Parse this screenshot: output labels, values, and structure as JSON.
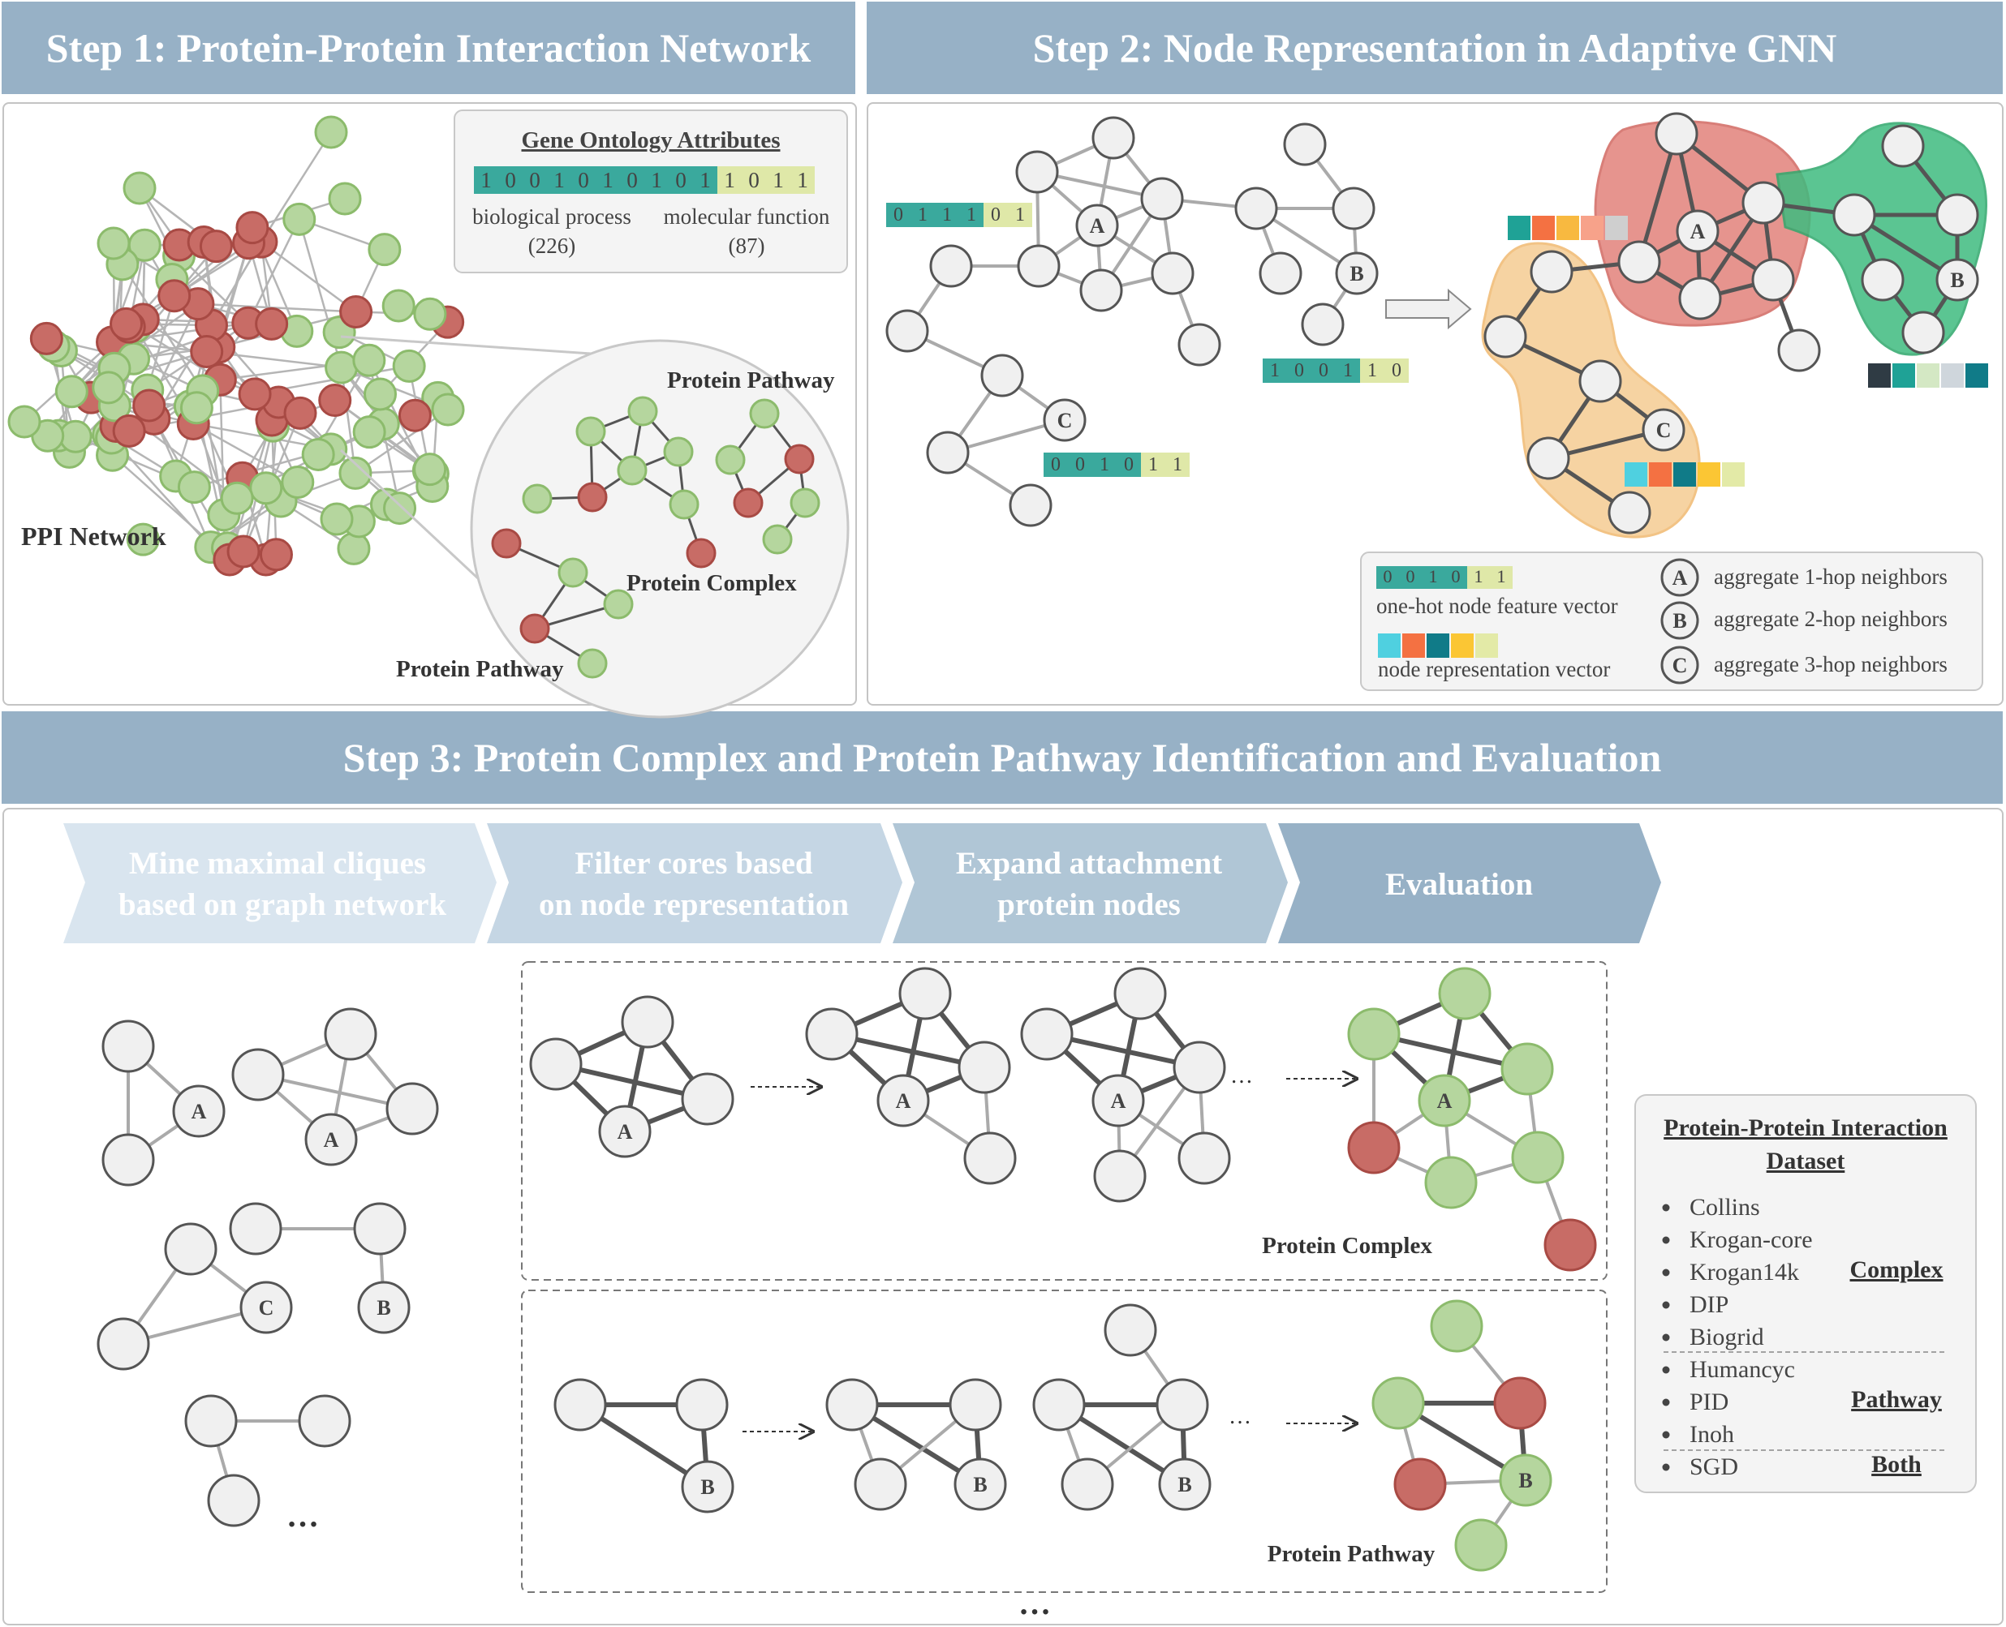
{
  "step1": {
    "title": "Step 1: Protein-Protein Interaction Network",
    "go_box": {
      "title": "Gene Ontology Attributes",
      "bits_bp": [
        "1",
        "0",
        "0",
        "1",
        "0",
        "1",
        "0",
        "1",
        "0",
        "1"
      ],
      "bits_mf": [
        "1",
        "0",
        "1",
        "1"
      ],
      "bp_label": "biological process",
      "bp_count": "(226)",
      "mf_label": "molecular function",
      "mf_count": "(87)"
    },
    "ppi_label": "PPI Network",
    "zoom_labels": {
      "pathway_top": "Protein Pathway",
      "complex": "Protein Complex",
      "pathway_bottom": "Protein Pathway"
    }
  },
  "step2": {
    "title": "Step 2: Node Representation in Adaptive GNN",
    "node_labels": {
      "a": "A",
      "b": "B",
      "c": "C"
    },
    "vec1": [
      "0",
      "1",
      "1",
      "1",
      "0",
      "1"
    ],
    "vec2": [
      "1",
      "0",
      "0",
      "1",
      "1",
      "0"
    ],
    "vec3": [
      "0",
      "0",
      "1",
      "0",
      "1",
      "1"
    ],
    "legend": {
      "feature_bits": [
        "0",
        "0",
        "1",
        "0",
        "1",
        "1"
      ],
      "feature_label": "one-hot node feature vector",
      "rep_label": "node representation vector",
      "hop_a": "aggregate 1-hop neighbors",
      "hop_b": "aggregate 2-hop neighbors",
      "hop_c": "aggregate 3-hop neighbors"
    }
  },
  "step3": {
    "title": "Step 3: Protein Complex and Protein Pathway Identification and Evaluation",
    "arrows": {
      "a1": "Mine maximal cliques",
      "a1b": "based on graph network",
      "a2": "Filter cores based",
      "a2b": "on node representation",
      "a3": "Expand attachment",
      "a3b": "protein nodes",
      "a4": "Evaluation"
    },
    "ellipsis": "…",
    "complex_label": "Protein Complex",
    "pathway_label": "Protein Pathway",
    "dataset": {
      "title1": "Protein-Protein Interaction",
      "title2": "Dataset",
      "complex_items": [
        "Collins",
        "Krogan-core",
        "Krogan14k",
        "DIP",
        "Biogrid"
      ],
      "pathway_items": [
        "Humancyc",
        "PID",
        "Inoh"
      ],
      "both_items": [
        "SGD"
      ],
      "complex_tag": "Complex",
      "pathway_tag": "Pathway",
      "both_tag": "Both"
    }
  },
  "colors": {
    "banner": "#97b1c6",
    "green_node": "#b5d69e",
    "red_node": "#c86c66",
    "grey_node": "#f0f0f0",
    "teal_bit": "#3aa99d",
    "yellow_bit": "#dfe8a8"
  }
}
